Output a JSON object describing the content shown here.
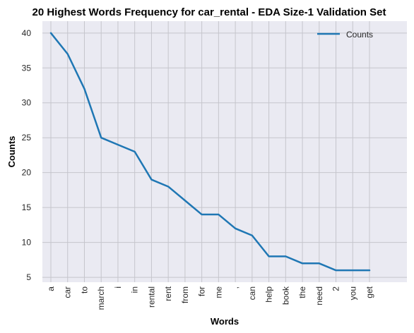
{
  "chart_data": {
    "type": "line",
    "title": "20 Highest Words Frequency for car_rental - EDA Size-1 Validation Set",
    "xlabel": "Words",
    "ylabel": "Counts",
    "categories": [
      "a",
      "car",
      "to",
      "march",
      "i",
      "in",
      "rental",
      "rent",
      "from",
      "for",
      "me",
      ",",
      "can",
      "help",
      "book",
      "the",
      "need",
      "2",
      "you",
      "get"
    ],
    "series": [
      {
        "name": "Counts",
        "values": [
          40,
          37,
          32,
          25,
          24,
          23,
          19,
          18,
          16,
          14,
          14,
          12,
          11,
          8,
          8,
          7,
          7,
          6,
          6,
          6
        ]
      }
    ],
    "yticks": [
      5,
      10,
      15,
      20,
      25,
      30,
      35,
      40
    ],
    "ylim": [
      4.3,
      41.7
    ],
    "grid": true,
    "legend_position": "top-right",
    "colors": {
      "plot_background": "#eaeaf2",
      "grid": "#c5c5cc",
      "line": "#1f77b4"
    }
  }
}
